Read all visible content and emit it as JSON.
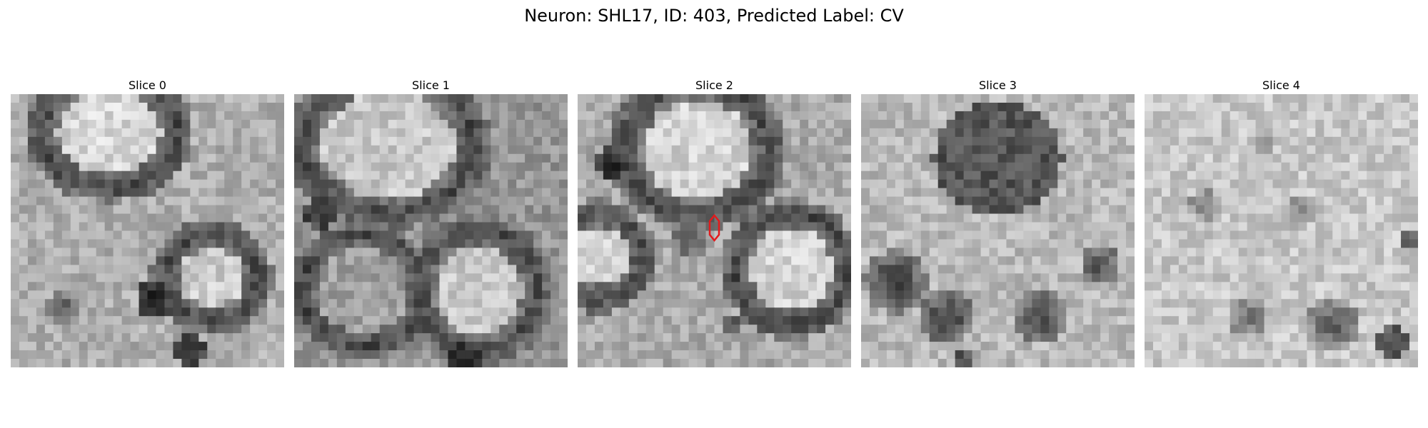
{
  "figure": {
    "title": "Neuron: SHL17, ID: 403, Predicted Label: CV"
  },
  "panels": [
    {
      "title": "Slice 0",
      "image_seed": 11
    },
    {
      "title": "Slice 1",
      "image_seed": 23
    },
    {
      "title": "Slice 2",
      "image_seed": 37
    },
    {
      "title": "Slice 3",
      "image_seed": 51
    },
    {
      "title": "Slice 4",
      "image_seed": 67
    }
  ],
  "marker": {
    "panel": "Slice 2",
    "color": "#e31a1c",
    "shape": "elongated-hexagon-outline"
  },
  "colormap": "gray"
}
